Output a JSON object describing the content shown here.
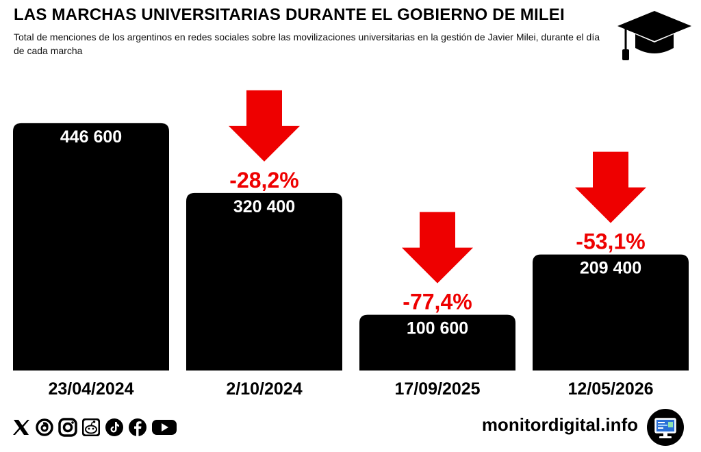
{
  "header": {
    "title": "LAS MARCHAS UNIVERSITARIAS DURANTE EL GOBIERNO DE MILEI",
    "subtitle": "Total de menciones de los argentinos en redes sociales sobre las movilizaciones universitarias en la gestión de Javier Milei, durante el día de cada marcha"
  },
  "chart_data": {
    "type": "bar",
    "categories": [
      "23/04/2024",
      "2/10/2024",
      "17/09/2025",
      "12/05/2026"
    ],
    "values": [
      446600,
      320400,
      100600,
      209400
    ],
    "value_labels": [
      "446 600",
      "320 400",
      "100 600",
      "209 400"
    ],
    "change_labels": [
      "",
      "-28,2%",
      "-77,4%",
      "-53,1%"
    ],
    "ylim": [
      0,
      460000
    ],
    "grid": false,
    "bar_color": "#000000",
    "arrow_color": "#ee0000",
    "value_label_color": "#ffffff",
    "change_label_color": "#ee0000"
  },
  "footer": {
    "site": "monitordigital.info",
    "social_icons": [
      "x-icon",
      "threads-icon",
      "instagram-icon",
      "reddit-icon",
      "tiktok-icon",
      "facebook-icon",
      "youtube-icon"
    ]
  },
  "icons": {
    "header": "graduation-cap-icon",
    "footer": "monitor-icon"
  }
}
